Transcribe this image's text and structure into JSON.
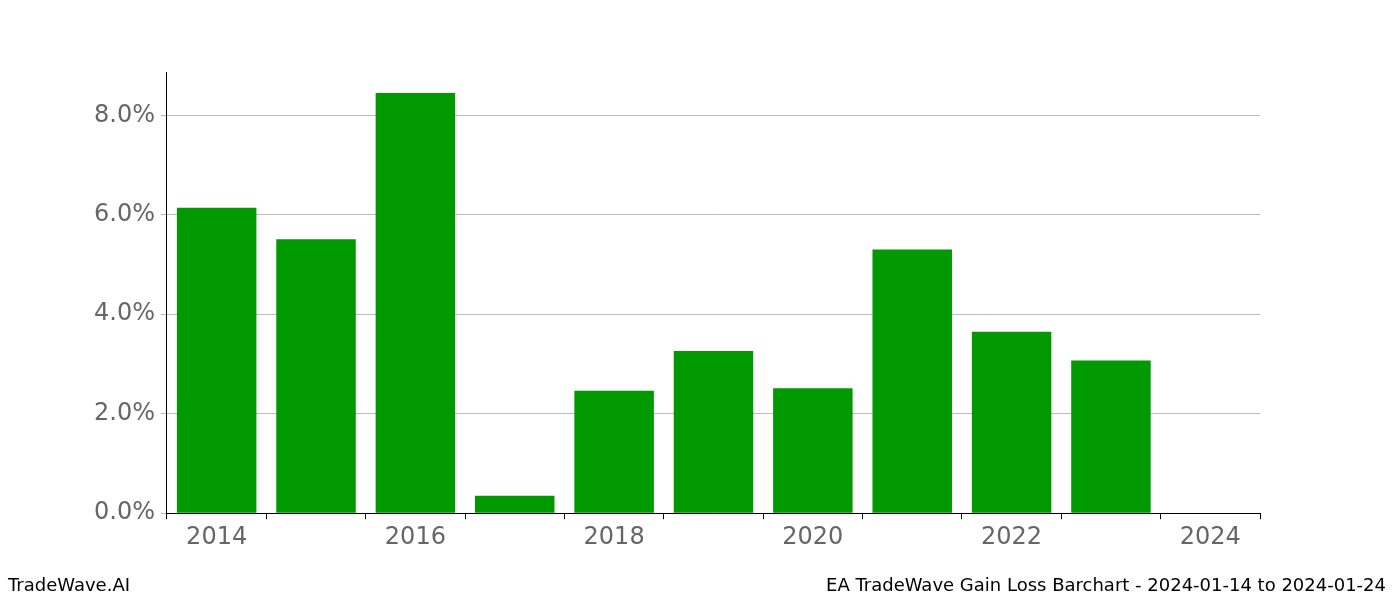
{
  "chart_data": {
    "type": "bar",
    "categories": [
      "2014",
      null,
      "2016",
      null,
      "2018",
      null,
      "2020",
      null,
      "2022",
      null,
      "2024"
    ],
    "values": [
      6.14,
      5.51,
      8.45,
      0.35,
      2.46,
      3.26,
      2.51,
      5.3,
      3.65,
      3.07,
      null
    ],
    "color": "#009900",
    "ylim": [
      0,
      8.87
    ],
    "yticks": [
      {
        "value": 0,
        "label": "0.0%"
      },
      {
        "value": 2,
        "label": "2.0%"
      },
      {
        "value": 4,
        "label": "4.0%"
      },
      {
        "value": 6,
        "label": "6.0%"
      },
      {
        "value": 8,
        "label": "8.0%"
      }
    ],
    "grid": true,
    "annotations": [
      "TradeWave.AI",
      "EA TradeWave Gain Loss Barchart - 2024-01-14 to 2024-01-24"
    ]
  }
}
